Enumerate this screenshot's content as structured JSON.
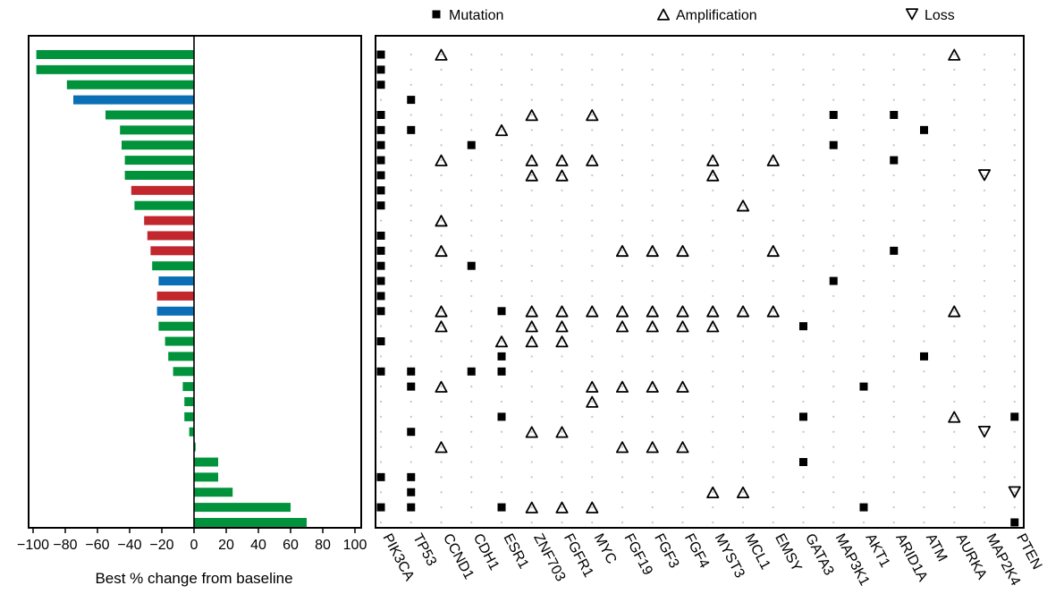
{
  "chart_data": [
    {
      "type": "bar",
      "orientation": "horizontal",
      "xlabel": "Best % change from baseline",
      "xlim": [
        -100,
        100
      ],
      "xticks": [
        -100,
        -80,
        -60,
        -40,
        -20,
        0,
        20,
        40,
        60,
        80,
        100
      ],
      "tick_labels": [
        "−100",
        "−80",
        "−60",
        "−40",
        "−20",
        "0",
        "20",
        "40",
        "60",
        "80",
        "100"
      ],
      "bar_colors": {
        "green": "#00933c",
        "blue": "#0a6fb4",
        "red": "#c1272d"
      },
      "values": [
        -98,
        -98,
        -79,
        -75,
        -55,
        -46,
        -45,
        -43,
        -43,
        -39,
        -37,
        -31,
        -29,
        -27,
        -26,
        -22,
        -23,
        -23,
        -22,
        -18,
        -16,
        -13,
        -7,
        -6,
        -6,
        -3,
        1,
        15,
        15,
        24,
        60,
        70
      ],
      "colors": [
        "green",
        "green",
        "green",
        "blue",
        "green",
        "green",
        "green",
        "green",
        "green",
        "red",
        "green",
        "red",
        "red",
        "red",
        "green",
        "blue",
        "red",
        "blue",
        "green",
        "green",
        "green",
        "green",
        "green",
        "green",
        "green",
        "green",
        "green",
        "green",
        "green",
        "green",
        "green",
        "green"
      ],
      "grid": false
    },
    {
      "type": "scatter",
      "subtype": "oncoprint",
      "legend": [
        {
          "key": "mutation",
          "label": "Mutation",
          "symbol": "filled-square"
        },
        {
          "key": "amplification",
          "label": "Amplification",
          "symbol": "triangle-up"
        },
        {
          "key": "loss",
          "label": "Loss",
          "symbol": "triangle-down"
        }
      ],
      "legend_position": "top",
      "genes": [
        "PIK3CA",
        "TP53",
        "CCND1",
        "CDH1",
        "ESR1",
        "ZNF703",
        "FGFR1",
        "MYC",
        "FGF19",
        "FGF3",
        "FGF4",
        "MYST3",
        "MCL1",
        "EMSY",
        "GATA3",
        "MAP3K1",
        "AKT1",
        "ARID1A",
        "ATM",
        "AURKA",
        "MAP2K4",
        "PTEN"
      ],
      "patients": 32,
      "grid": "dotted",
      "events": [
        {
          "gene": "PIK3CA",
          "patients": [
            1,
            2,
            3,
            5,
            6,
            7,
            8,
            9,
            10,
            11,
            13,
            14,
            15,
            16,
            17,
            18,
            20,
            22,
            29,
            31
          ],
          "type": "mutation"
        },
        {
          "gene": "TP53",
          "patients": [
            4,
            6,
            22,
            23,
            26,
            29,
            30,
            31
          ],
          "type": "mutation"
        },
        {
          "gene": "CCND1",
          "patients": [
            1,
            8,
            12,
            14,
            18,
            19,
            23,
            27
          ],
          "type": "amplification"
        },
        {
          "gene": "CDH1",
          "patients": [
            7,
            15,
            22
          ],
          "type": "mutation"
        },
        {
          "gene": "ESR1",
          "patients": [
            18,
            21,
            22,
            25,
            31
          ],
          "type": "mutation"
        },
        {
          "gene": "ESR1",
          "patients": [
            6,
            20
          ],
          "type": "amplification"
        },
        {
          "gene": "ZNF703",
          "patients": [
            5,
            8,
            9,
            18,
            19,
            20,
            26,
            31
          ],
          "type": "amplification"
        },
        {
          "gene": "FGFR1",
          "patients": [
            8,
            9,
            18,
            19,
            20,
            26,
            31
          ],
          "type": "amplification"
        },
        {
          "gene": "MYC",
          "patients": [
            5,
            8,
            18,
            23,
            24,
            31
          ],
          "type": "amplification"
        },
        {
          "gene": "FGF19",
          "patients": [
            14,
            18,
            19,
            23,
            27
          ],
          "type": "amplification"
        },
        {
          "gene": "FGF3",
          "patients": [
            14,
            18,
            19,
            23,
            27
          ],
          "type": "amplification"
        },
        {
          "gene": "FGF4",
          "patients": [
            14,
            18,
            19,
            23,
            27
          ],
          "type": "amplification"
        },
        {
          "gene": "MYST3",
          "patients": [
            8,
            9,
            18,
            19,
            30
          ],
          "type": "amplification"
        },
        {
          "gene": "MCL1",
          "patients": [
            11,
            18,
            30
          ],
          "type": "amplification"
        },
        {
          "gene": "EMSY",
          "patients": [
            8,
            14,
            18
          ],
          "type": "amplification"
        },
        {
          "gene": "GATA3",
          "patients": [
            19,
            25,
            28
          ],
          "type": "mutation"
        },
        {
          "gene": "MAP3K1",
          "patients": [
            5,
            7,
            16
          ],
          "type": "mutation"
        },
        {
          "gene": "AKT1",
          "patients": [
            23,
            31
          ],
          "type": "mutation"
        },
        {
          "gene": "ARID1A",
          "patients": [
            5,
            8,
            14
          ],
          "type": "mutation"
        },
        {
          "gene": "ATM",
          "patients": [
            6,
            21
          ],
          "type": "mutation"
        },
        {
          "gene": "AURKA",
          "patients": [
            1,
            18,
            25
          ],
          "type": "amplification"
        },
        {
          "gene": "MAP2K4",
          "patients": [
            9,
            26
          ],
          "type": "loss"
        },
        {
          "gene": "PTEN",
          "patients": [
            25,
            32
          ],
          "type": "mutation"
        },
        {
          "gene": "PTEN",
          "patients": [
            30
          ],
          "type": "loss"
        }
      ]
    }
  ]
}
